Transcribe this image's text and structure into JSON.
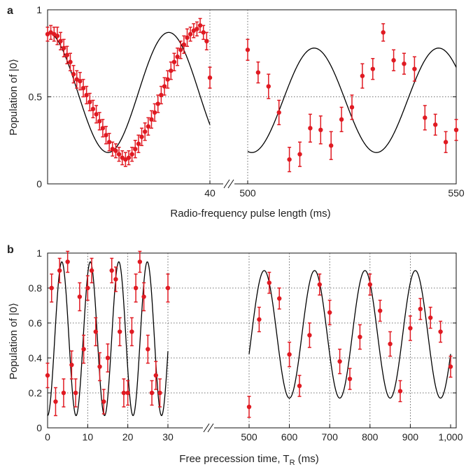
{
  "style": {
    "point_color": "#e01a22",
    "fit_color": "#000000",
    "grid_color": "#444444"
  },
  "chart_data": [
    {
      "panel_label": "a",
      "type": "scatter",
      "ylabel": "Population of |0⟩",
      "xlabel": "Radio-frequency pulse length (ms)",
      "ylim": [
        0,
        1
      ],
      "yticks": [
        "0",
        "0.5",
        "1"
      ],
      "broken_axis": true,
      "segments": [
        {
          "xlim": [
            0,
            40
          ],
          "tick_labels": [
            {
              "x": 40,
              "label": "40"
            }
          ],
          "grid_x": [
            40
          ],
          "fit": {
            "offset": 0.525,
            "amp": 0.345,
            "freq": 0.0335,
            "phase": 0,
            "decay": 0
          },
          "points": [
            [
              0,
              0.86,
              0.04
            ],
            [
              0.8,
              0.87,
              0.04
            ],
            [
              1.6,
              0.86,
              0.04
            ],
            [
              2.4,
              0.85,
              0.05
            ],
            [
              3.2,
              0.82,
              0.05
            ],
            [
              4.0,
              0.78,
              0.05
            ],
            [
              4.8,
              0.74,
              0.05
            ],
            [
              5.6,
              0.7,
              0.05
            ],
            [
              6.4,
              0.63,
              0.05
            ],
            [
              7.2,
              0.6,
              0.05
            ],
            [
              8.0,
              0.59,
              0.05
            ],
            [
              8.8,
              0.55,
              0.05
            ],
            [
              9.6,
              0.51,
              0.05
            ],
            [
              10.4,
              0.47,
              0.05
            ],
            [
              11.2,
              0.43,
              0.05
            ],
            [
              12.0,
              0.4,
              0.05
            ],
            [
              12.8,
              0.36,
              0.05
            ],
            [
              13.6,
              0.32,
              0.05
            ],
            [
              14.4,
              0.28,
              0.05
            ],
            [
              15.2,
              0.24,
              0.05
            ],
            [
              16.0,
              0.2,
              0.04
            ],
            [
              16.8,
              0.19,
              0.04
            ],
            [
              17.6,
              0.17,
              0.04
            ],
            [
              18.4,
              0.15,
              0.04
            ],
            [
              19.2,
              0.14,
              0.04
            ],
            [
              20.0,
              0.15,
              0.04
            ],
            [
              20.8,
              0.17,
              0.04
            ],
            [
              21.6,
              0.2,
              0.05
            ],
            [
              22.4,
              0.23,
              0.05
            ],
            [
              23.2,
              0.27,
              0.05
            ],
            [
              24.0,
              0.3,
              0.05
            ],
            [
              24.8,
              0.33,
              0.05
            ],
            [
              25.6,
              0.37,
              0.05
            ],
            [
              26.4,
              0.41,
              0.05
            ],
            [
              27.2,
              0.46,
              0.05
            ],
            [
              28.0,
              0.51,
              0.05
            ],
            [
              28.8,
              0.56,
              0.05
            ],
            [
              29.6,
              0.6,
              0.05
            ],
            [
              30.4,
              0.65,
              0.05
            ],
            [
              31.2,
              0.7,
              0.05
            ],
            [
              32.0,
              0.73,
              0.05
            ],
            [
              32.8,
              0.77,
              0.05
            ],
            [
              33.6,
              0.8,
              0.05
            ],
            [
              34.4,
              0.84,
              0.05
            ],
            [
              35.2,
              0.86,
              0.04
            ],
            [
              36.0,
              0.88,
              0.04
            ],
            [
              36.8,
              0.89,
              0.04
            ],
            [
              37.6,
              0.91,
              0.04
            ],
            [
              38.4,
              0.87,
              0.04
            ],
            [
              39.2,
              0.82,
              0.05
            ],
            [
              40.0,
              0.61,
              0.06
            ]
          ]
        },
        {
          "xlim": [
            500,
            550
          ],
          "tick_labels": [
            {
              "x": 500,
              "label": "500"
            },
            {
              "x": 550,
              "label": "550"
            }
          ],
          "grid_x": [
            500
          ],
          "fit": {
            "offset": 0.48,
            "amp": 0.3,
            "freq": 0.0335,
            "phase": 2.93,
            "decay": 0
          },
          "points": [
            [
              500.0,
              0.77,
              0.06
            ],
            [
              502.5,
              0.64,
              0.06
            ],
            [
              505.0,
              0.56,
              0.07
            ],
            [
              507.5,
              0.41,
              0.07
            ],
            [
              510.0,
              0.14,
              0.07
            ],
            [
              512.5,
              0.17,
              0.07
            ],
            [
              515.0,
              0.32,
              0.08
            ],
            [
              517.5,
              0.31,
              0.08
            ],
            [
              520.0,
              0.22,
              0.08
            ],
            [
              522.5,
              0.37,
              0.07
            ],
            [
              525.0,
              0.44,
              0.07
            ],
            [
              527.5,
              0.62,
              0.07
            ],
            [
              530.0,
              0.66,
              0.06
            ],
            [
              532.5,
              0.87,
              0.05
            ],
            [
              535.0,
              0.71,
              0.06
            ],
            [
              537.5,
              0.69,
              0.06
            ],
            [
              540.0,
              0.66,
              0.07
            ],
            [
              542.5,
              0.38,
              0.07
            ],
            [
              545.0,
              0.34,
              0.06
            ],
            [
              547.5,
              0.24,
              0.06
            ],
            [
              550.0,
              0.31,
              0.06
            ]
          ]
        }
      ]
    },
    {
      "panel_label": "b",
      "type": "scatter",
      "ylabel": "Population of |0⟩",
      "xlabel_main": "Free precession time, T",
      "xlabel_sub": "R",
      "xlabel_unit": " (ms)",
      "ylim": [
        0,
        1
      ],
      "yticks": [
        "0",
        "0.2",
        "0.4",
        "0.6",
        "0.8",
        "1"
      ],
      "broken_axis": true,
      "segments": [
        {
          "xlim": [
            0,
            30
          ],
          "tick_labels": [
            {
              "x": 0,
              "label": "0"
            },
            {
              "x": 10,
              "label": "10"
            },
            {
              "x": 20,
              "label": "20"
            },
            {
              "x": 30,
              "label": "30"
            }
          ],
          "grid_x": [
            10,
            20,
            30
          ],
          "fit": {
            "offset": 0.51,
            "amp": 0.44,
            "freq": 0.1408,
            "phase": 3.14159,
            "decay": 0
          },
          "points": [
            [
              0,
              0.3,
              0.07
            ],
            [
              1,
              0.8,
              0.08
            ],
            [
              2,
              0.15,
              0.08
            ],
            [
              3,
              0.9,
              0.07
            ],
            [
              4,
              0.2,
              0.08
            ],
            [
              5,
              0.95,
              0.06
            ],
            [
              6,
              0.36,
              0.08
            ],
            [
              7,
              0.2,
              0.08
            ],
            [
              8,
              0.75,
              0.08
            ],
            [
              9,
              0.45,
              0.08
            ],
            [
              10,
              0.8,
              0.07
            ],
            [
              11,
              0.9,
              0.07
            ],
            [
              12,
              0.55,
              0.08
            ],
            [
              13,
              0.35,
              0.08
            ],
            [
              14,
              0.15,
              0.07
            ],
            [
              15,
              0.4,
              0.08
            ],
            [
              16,
              0.9,
              0.07
            ],
            [
              17,
              0.85,
              0.07
            ],
            [
              18,
              0.55,
              0.08
            ],
            [
              19,
              0.2,
              0.08
            ],
            [
              20,
              0.2,
              0.07
            ],
            [
              21,
              0.55,
              0.08
            ],
            [
              22,
              0.8,
              0.08
            ],
            [
              23,
              0.95,
              0.06
            ],
            [
              24,
              0.75,
              0.08
            ],
            [
              25,
              0.45,
              0.08
            ],
            [
              26,
              0.2,
              0.07
            ],
            [
              27,
              0.3,
              0.08
            ],
            [
              28,
              0.2,
              0.08
            ],
            [
              30,
              0.8,
              0.08
            ]
          ]
        },
        {
          "xlim": [
            500,
            1000
          ],
          "tick_labels": [
            {
              "x": 500,
              "label": "500"
            },
            {
              "x": 600,
              "label": "600"
            },
            {
              "x": 700,
              "label": "700"
            },
            {
              "x": 800,
              "label": "800"
            },
            {
              "x": 900,
              "label": "900"
            },
            {
              "x": 1000,
              "label": "1,000"
            }
          ],
          "grid_x": [
            500,
            600,
            700,
            800,
            900
          ],
          "fit": {
            "offset": 0.535,
            "amp": 0.365,
            "freq": 0.008,
            "phase": -1.884,
            "decay": 0
          },
          "points": [
            [
              500,
              0.12,
              0.06
            ],
            [
              525,
              0.62,
              0.07
            ],
            [
              550,
              0.83,
              0.06
            ],
            [
              575,
              0.74,
              0.06
            ],
            [
              600,
              0.42,
              0.07
            ],
            [
              625,
              0.24,
              0.06
            ],
            [
              650,
              0.53,
              0.07
            ],
            [
              675,
              0.82,
              0.06
            ],
            [
              700,
              0.66,
              0.07
            ],
            [
              725,
              0.38,
              0.07
            ],
            [
              750,
              0.28,
              0.06
            ],
            [
              775,
              0.52,
              0.07
            ],
            [
              800,
              0.82,
              0.06
            ],
            [
              825,
              0.67,
              0.06
            ],
            [
              850,
              0.48,
              0.07
            ],
            [
              875,
              0.21,
              0.06
            ],
            [
              900,
              0.57,
              0.07
            ],
            [
              925,
              0.68,
              0.06
            ],
            [
              950,
              0.63,
              0.06
            ],
            [
              975,
              0.55,
              0.06
            ],
            [
              1000,
              0.35,
              0.06
            ]
          ]
        }
      ]
    }
  ]
}
